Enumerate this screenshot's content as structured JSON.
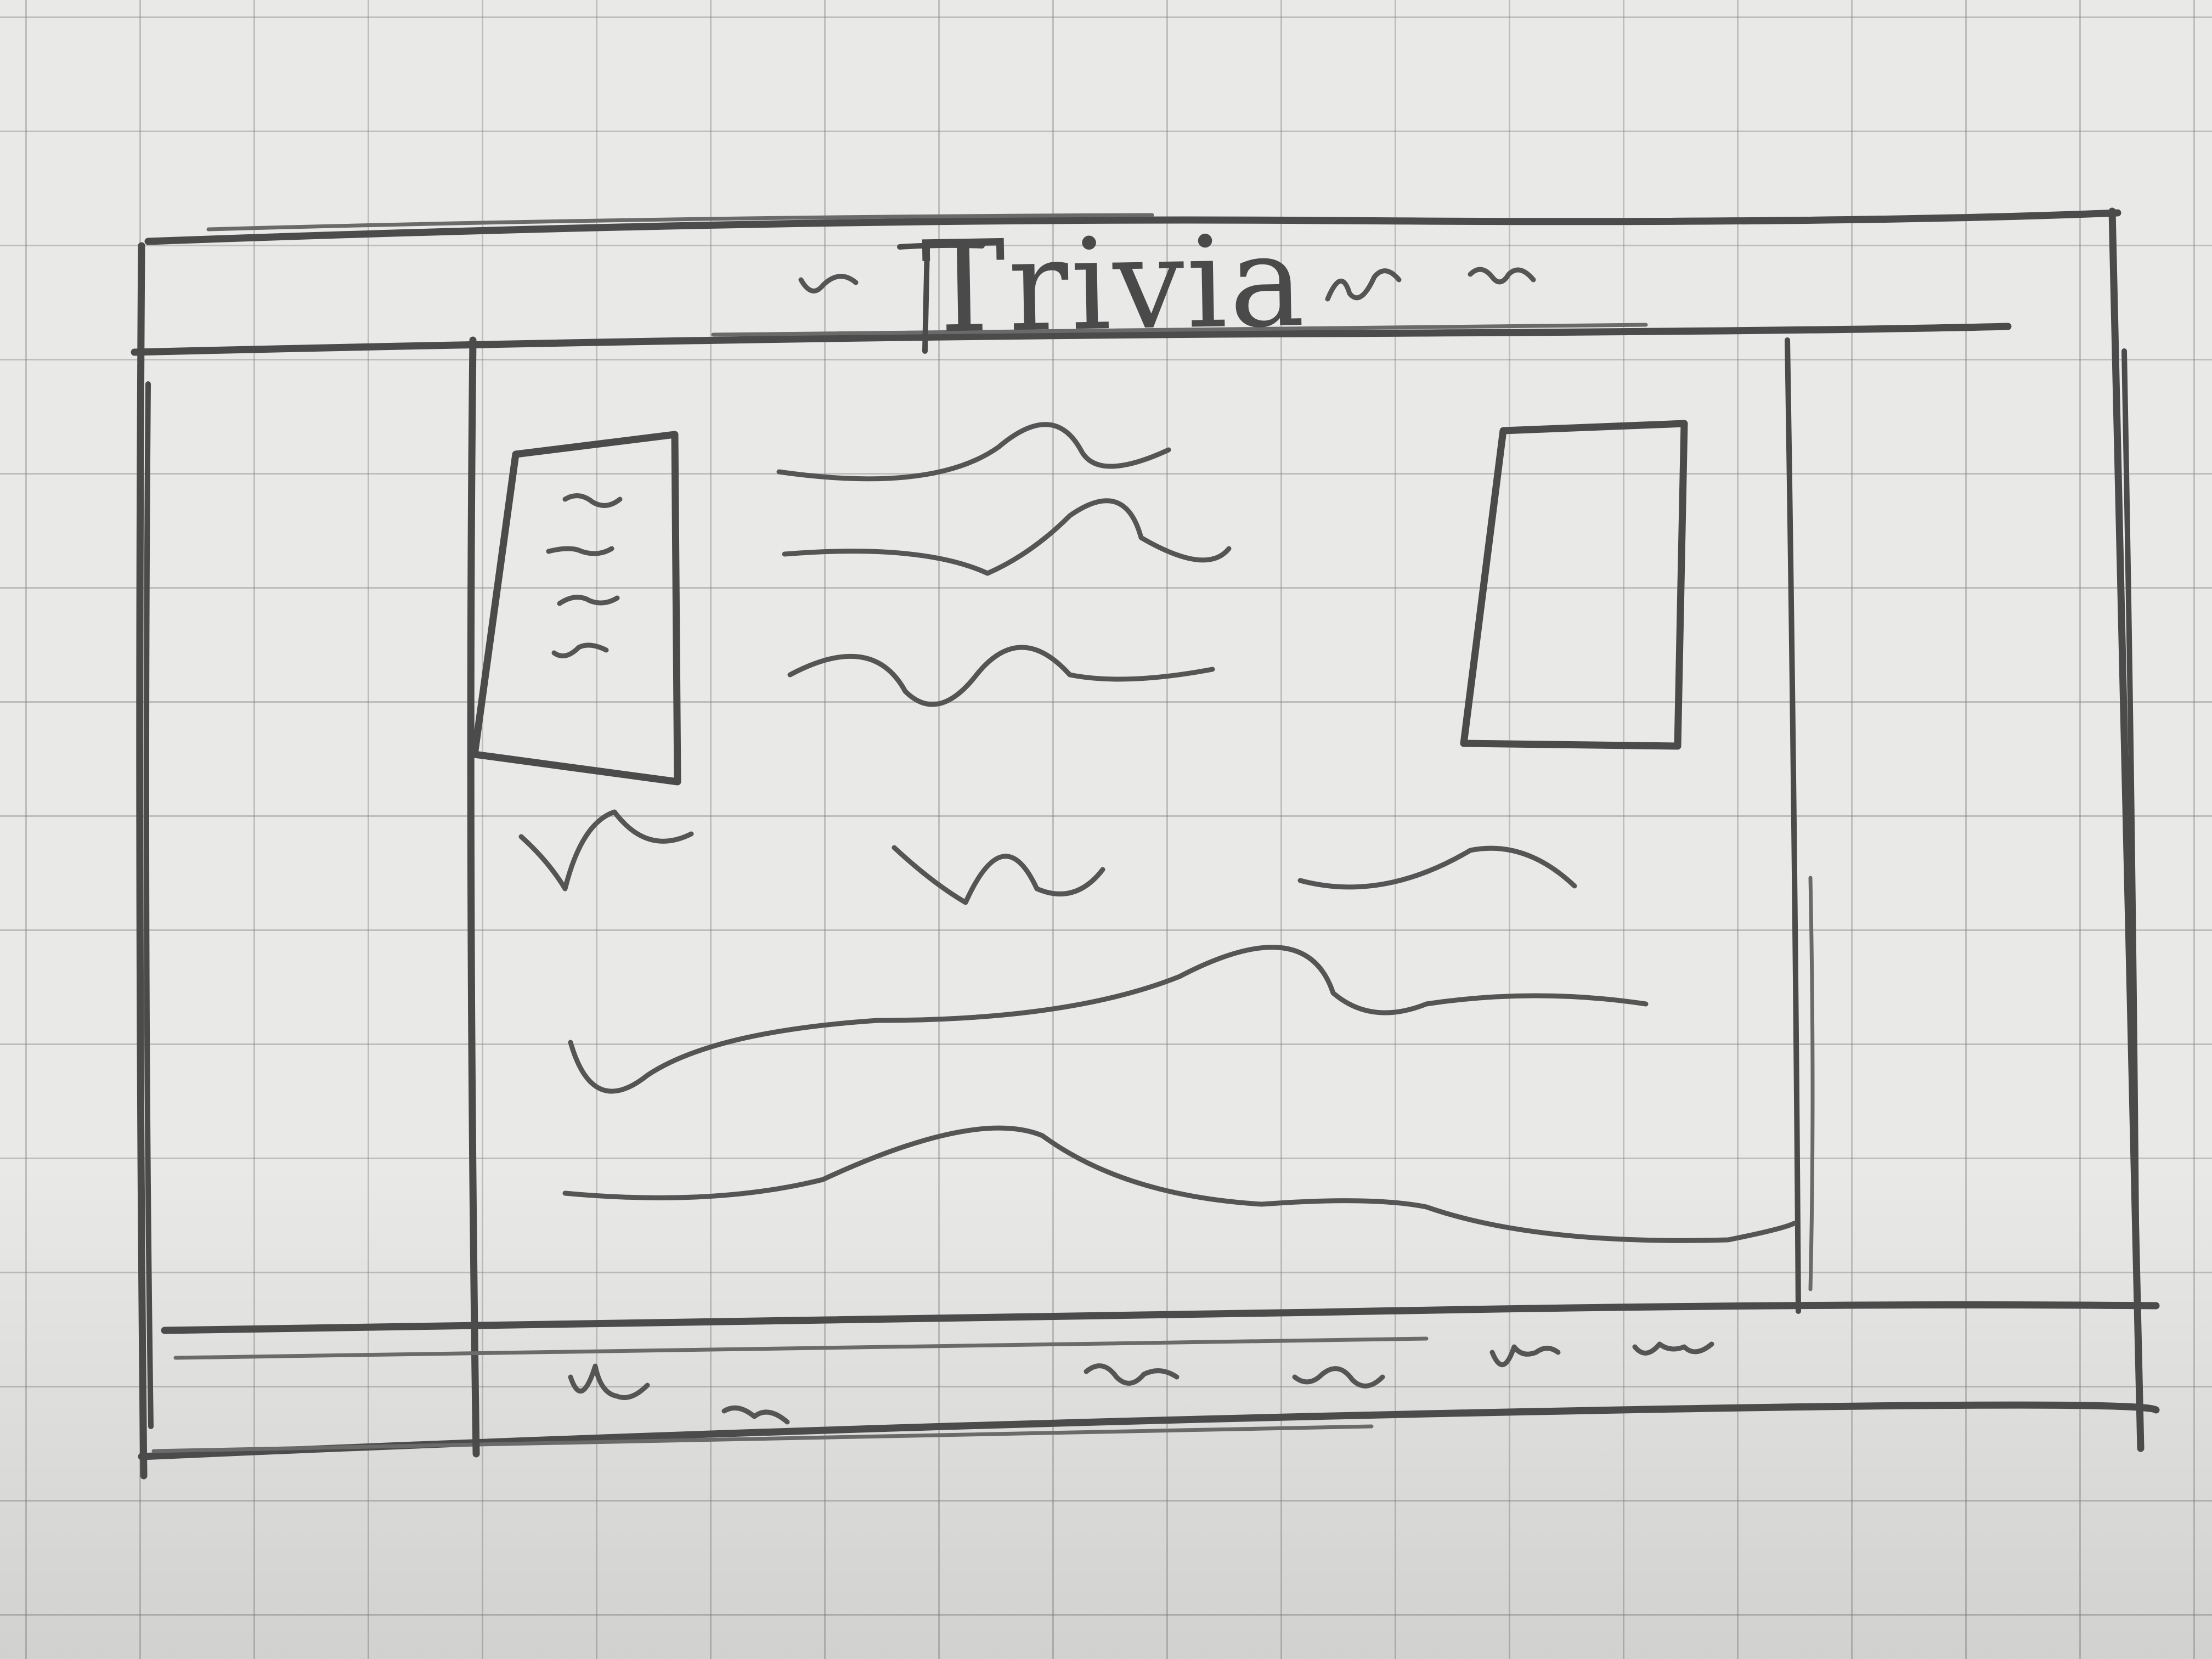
{
  "header": {
    "title": "Trivia"
  },
  "colors": {
    "paper": "#e9e9e7",
    "grid": "#7a7a7a",
    "pencil": "#4b4b4b"
  }
}
